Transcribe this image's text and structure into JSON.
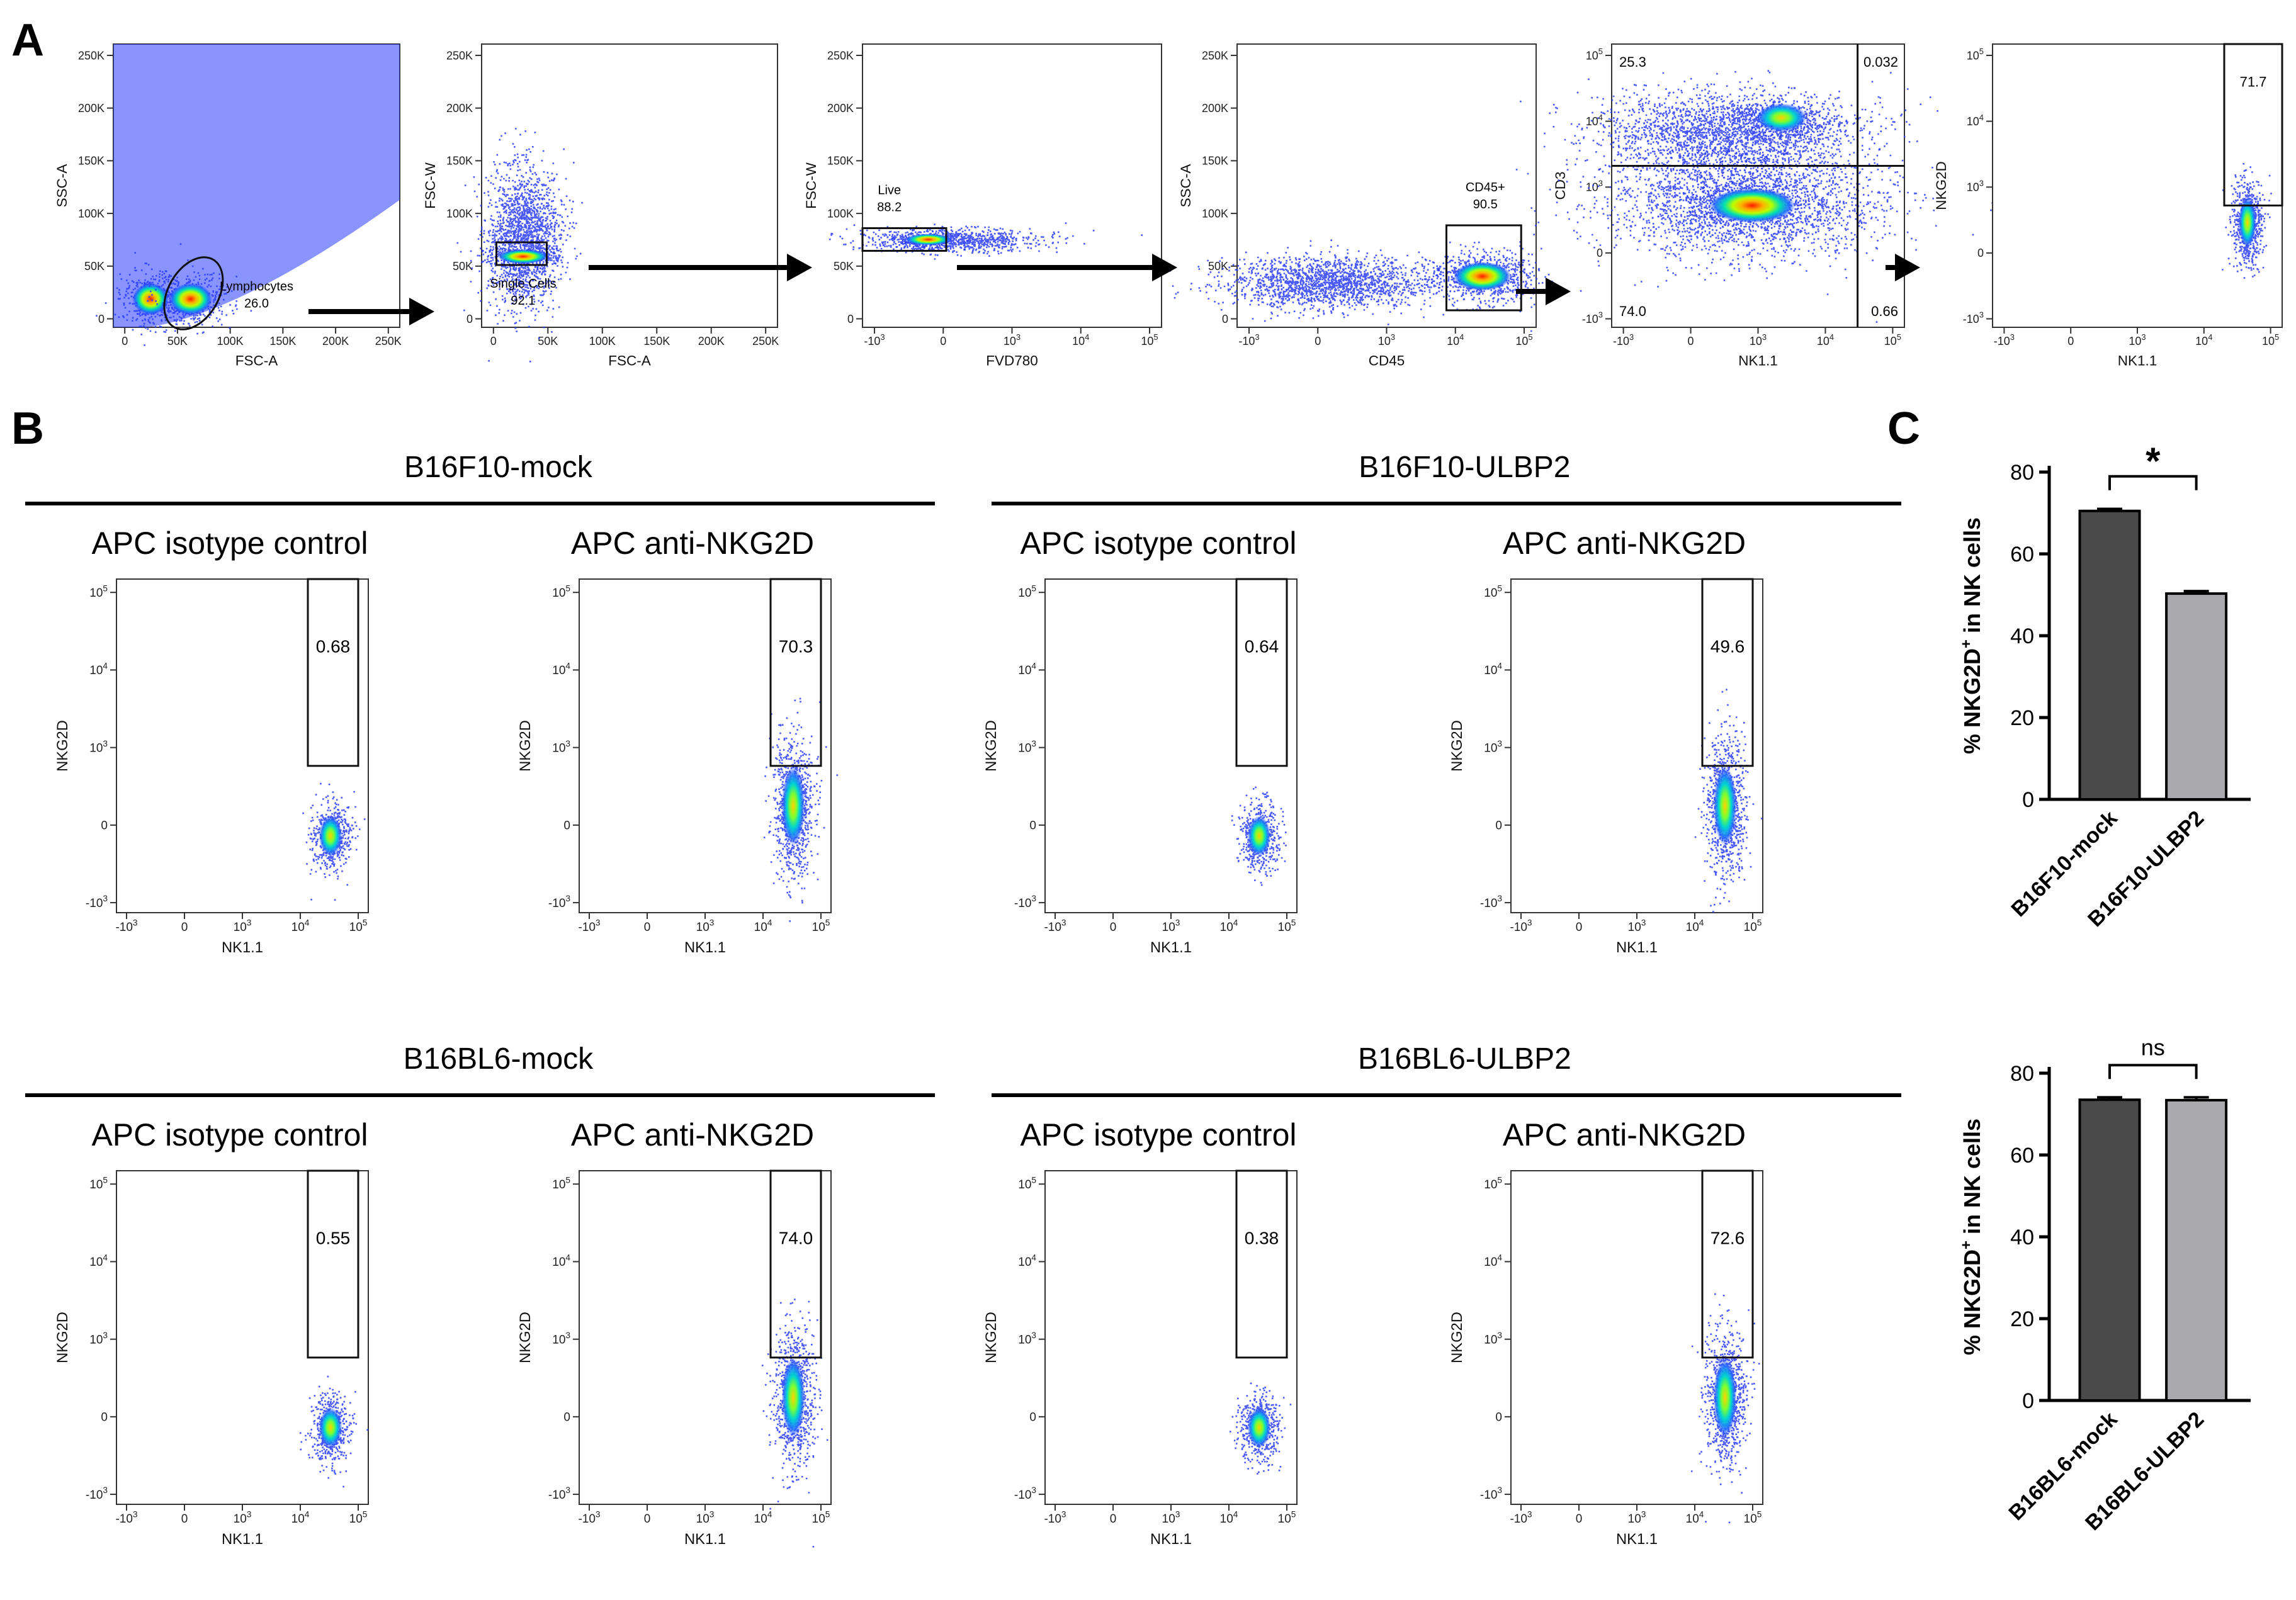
{
  "panel_letters": {
    "A": "A",
    "B": "B",
    "C": "C"
  },
  "gating": {
    "plots": [
      {
        "id": "p1",
        "xlabel": "FSC-A",
        "ylabel": "SSC-A",
        "xticks": [
          "0",
          "50K",
          "100K",
          "150K",
          "200K",
          "250K"
        ],
        "yticks": [
          "0",
          "50K",
          "100K",
          "150K",
          "200K",
          "250K"
        ],
        "gate": {
          "name": "Lymphocytes",
          "value": "26.0",
          "shape": "ellipse"
        }
      },
      {
        "id": "p2",
        "xlabel": "FSC-A",
        "ylabel": "FSC-W",
        "xticks": [
          "0",
          "50K",
          "100K",
          "150K",
          "200K",
          "250K"
        ],
        "yticks": [
          "0",
          "50K",
          "100K",
          "150K",
          "200K",
          "250K"
        ],
        "gate": {
          "name": "Single Cells",
          "value": "92.1",
          "shape": "rect"
        }
      },
      {
        "id": "p3",
        "xlabel": "FVD780",
        "ylabel": "FSC-W",
        "xticks": [
          "-10^3",
          "0",
          "10^3",
          "10^4",
          "10^5"
        ],
        "yticks": [
          "0",
          "50K",
          "100K",
          "150K",
          "200K",
          "250K"
        ],
        "gate": {
          "name": "Live",
          "value": "88.2",
          "shape": "rect"
        }
      },
      {
        "id": "p4",
        "xlabel": "CD45",
        "ylabel": "SSC-A",
        "xticks": [
          "-10^3",
          "0",
          "10^3",
          "10^4",
          "10^5"
        ],
        "yticks": [
          "0",
          "50K",
          "100K",
          "150K",
          "200K",
          "250K"
        ],
        "gate": {
          "name": "CD45+",
          "value": "90.5",
          "shape": "rect"
        }
      },
      {
        "id": "p5",
        "xlabel": "NK1.1",
        "ylabel": "CD3",
        "xticks": [
          "-10^3",
          "0",
          "10^3",
          "10^4",
          "10^5"
        ],
        "yticks": [
          "-10^3",
          "0",
          "10^3",
          "10^4",
          "10^5"
        ],
        "quadrants": {
          "UL": "25.3",
          "UR": "0.032",
          "LL": "74.0",
          "LR": "0.66"
        }
      },
      {
        "id": "p6",
        "xlabel": "NK1.1",
        "ylabel": "NKG2D",
        "xticks": [
          "-10^3",
          "0",
          "10^3",
          "10^4",
          "10^5"
        ],
        "yticks": [
          "-10^3",
          "0",
          "10^3",
          "10^4",
          "10^5"
        ],
        "gate": {
          "name": "",
          "value": "71.7",
          "shape": "rect"
        }
      }
    ]
  },
  "flow_panels": {
    "groups": [
      {
        "title": "B16F10-mock",
        "plots": [
          {
            "subtitle": "APC isotype control",
            "value": "0.68"
          },
          {
            "subtitle": "APC anti-NKG2D",
            "value": "70.3"
          }
        ]
      },
      {
        "title": "B16F10-ULBP2",
        "plots": [
          {
            "subtitle": "APC isotype control",
            "value": "0.64"
          },
          {
            "subtitle": "APC anti-NKG2D",
            "value": "49.6"
          }
        ]
      },
      {
        "title": "B16BL6-mock",
        "plots": [
          {
            "subtitle": "APC isotype control",
            "value": "0.55"
          },
          {
            "subtitle": "APC anti-NKG2D",
            "value": "74.0"
          }
        ]
      },
      {
        "title": "B16BL6-ULBP2",
        "plots": [
          {
            "subtitle": "APC isotype control",
            "value": "0.38"
          },
          {
            "subtitle": "APC anti-NKG2D",
            "value": "72.6"
          }
        ]
      }
    ],
    "xlabel": "NK1.1",
    "ylabel": "NKG2D",
    "xticks": [
      "-10^3",
      "0",
      "10^3",
      "10^4",
      "10^5"
    ],
    "yticks": [
      "-10^3",
      "0",
      "10^3",
      "10^4",
      "10^5"
    ]
  },
  "chart_data": [
    {
      "type": "bar",
      "panel": "C-top",
      "categories": [
        "B16F10-mock",
        "B16F10-ULBP2"
      ],
      "values": [
        70.5,
        50.3
      ],
      "errors": [
        0.5,
        0.6
      ],
      "colors": [
        "#4a4a4a",
        "#a9a9ae"
      ],
      "ylabel": "% NKG2D+ in NK cells",
      "ylim": [
        0,
        80
      ],
      "yticks": [
        "0",
        "20",
        "40",
        "60",
        "80"
      ],
      "significance": "*"
    },
    {
      "type": "bar",
      "panel": "C-bottom",
      "categories": [
        "B16BL6-mock",
        "B16BL6-ULBP2"
      ],
      "values": [
        73.5,
        73.4
      ],
      "errors": [
        0.6,
        0.7
      ],
      "colors": [
        "#4a4a4a",
        "#a9a9ae"
      ],
      "ylabel": "% NKG2D+ in NK cells",
      "ylim": [
        0,
        80
      ],
      "yticks": [
        "0",
        "20",
        "40",
        "60",
        "80"
      ],
      "significance": "ns"
    }
  ]
}
